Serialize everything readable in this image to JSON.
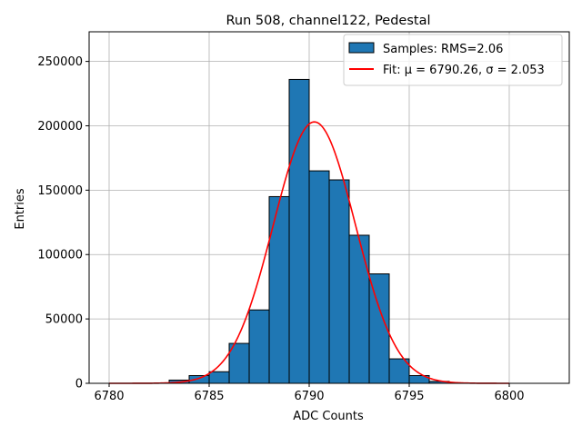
{
  "chart_data": {
    "type": "bar",
    "title": "Run 508, channel122, Pedestal",
    "xlabel": "ADC Counts",
    "ylabel": "Entries",
    "xlim": [
      6779,
      6803
    ],
    "ylim": [
      0,
      273000
    ],
    "xticks": [
      6780,
      6785,
      6790,
      6795,
      6800
    ],
    "yticks": [
      0,
      50000,
      100000,
      150000,
      200000,
      250000
    ],
    "grid": true,
    "legend_position": "top-right",
    "histogram": {
      "name": "Samples: RMS=2.06",
      "color": "#1f77b4",
      "bin_edges": [
        6783,
        6784,
        6785,
        6786,
        6787,
        6788,
        6789,
        6790,
        6791,
        6792,
        6793,
        6794,
        6795,
        6796,
        6797
      ],
      "counts": [
        2500,
        6000,
        9000,
        31000,
        57000,
        145000,
        236000,
        165000,
        158000,
        115000,
        85000,
        19000,
        6000,
        1500
      ]
    },
    "fit": {
      "name": "Fit: μ = 6790.26, σ = 2.053",
      "color": "#ff0000",
      "mu": 6790.26,
      "sigma": 2.053,
      "amplitude": 203000,
      "x_range": [
        6780,
        6800
      ]
    }
  }
}
